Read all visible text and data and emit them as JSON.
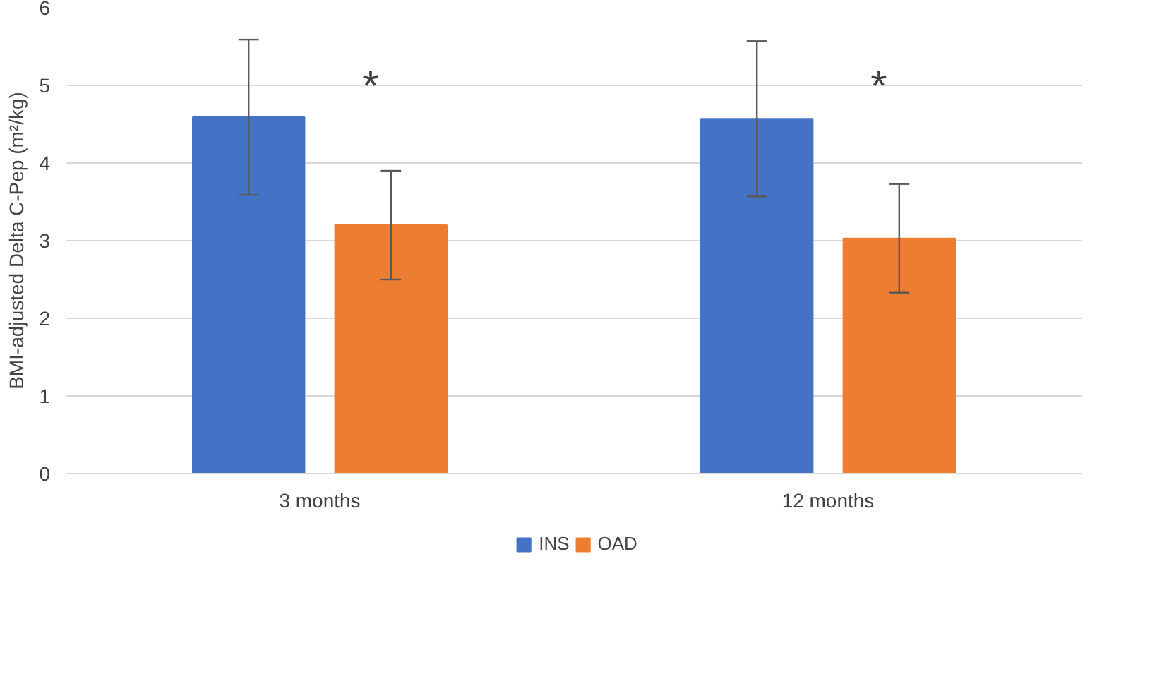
{
  "chart_data": {
    "type": "bar",
    "ylabel": "BMI-adjusted Delta C-Pep (m²/kg)",
    "categories": [
      "3 months",
      "12 months"
    ],
    "series": [
      {
        "name": "INS",
        "color": "#4472c4",
        "values": [
          4.59,
          4.57
        ],
        "errors": [
          1.0,
          1.0
        ]
      },
      {
        "name": "OAD",
        "color": "#ed7d31",
        "values": [
          3.2,
          3.03
        ],
        "errors": [
          0.7,
          0.7
        ]
      }
    ],
    "ylim": [
      0,
      6
    ],
    "yticks": [
      0,
      1,
      2,
      3,
      4,
      5,
      6
    ],
    "grid": "y",
    "legend": "bottom",
    "annotations": [
      "*",
      "*"
    ]
  }
}
